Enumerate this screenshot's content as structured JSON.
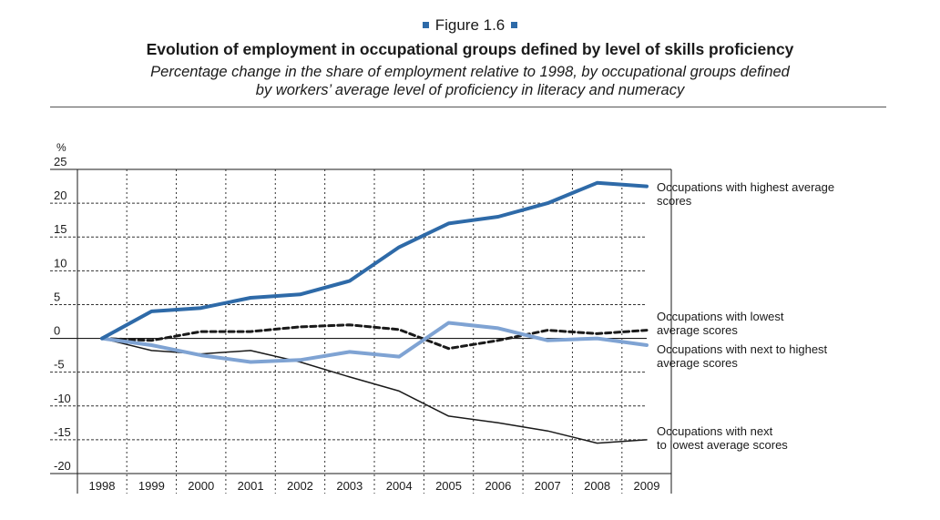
{
  "figure_label": "Figure 1.6",
  "title": "Evolution of employment in occupational groups defined by level of skills proficiency",
  "subtitle_line1": "Percentage change in the share of employment relative to 1998, by occupational groups defined",
  "subtitle_line2": "by workers’ average level of proficiency in literacy and numeracy",
  "colors": {
    "accent": "#2e6aa8"
  },
  "chart_data": {
    "type": "line",
    "title": "Evolution of employment in occupational groups defined by level of skills proficiency",
    "ylabel": "%",
    "xlabel": "",
    "ylim": [
      -20,
      25
    ],
    "yticks": [
      25,
      20,
      15,
      10,
      5,
      0,
      -5,
      -10,
      -15,
      -20
    ],
    "x": [
      "1998",
      "1999",
      "2000",
      "2001",
      "2002",
      "2003",
      "2004",
      "2005",
      "2006",
      "2007",
      "2008",
      "2009"
    ],
    "grid": true,
    "legend": "right",
    "series": [
      {
        "name": "Occupations with highest average scores",
        "label_lines": [
          "Occupations with highest average",
          "scores"
        ],
        "color": "#2e6aa8",
        "style": "solid-thick",
        "values": [
          0,
          4.0,
          4.5,
          6.0,
          6.5,
          8.5,
          13.5,
          17.0,
          18.0,
          20.0,
          23.0,
          22.5
        ]
      },
      {
        "name": "Occupations with lowest average scores",
        "label_lines": [
          "Occupations with lowest",
          "average scores"
        ],
        "color": "#1a1a1a",
        "style": "dashed",
        "values": [
          0,
          -0.3,
          1.0,
          1.0,
          1.7,
          2.0,
          1.3,
          -1.5,
          -0.3,
          1.2,
          0.7,
          1.2
        ]
      },
      {
        "name": "Occupations with next to highest average scores",
        "label_lines": [
          "Occupations with next to highest",
          "average scores"
        ],
        "color": "#7fa3d3",
        "style": "solid-thick",
        "values": [
          0,
          -1.0,
          -2.5,
          -3.5,
          -3.2,
          -2.0,
          -2.7,
          2.3,
          1.5,
          -0.3,
          0.0,
          -1.0
        ]
      },
      {
        "name": "Occupations with next to lowest average scores",
        "label_lines": [
          "Occupations with next",
          "to lowest average scores"
        ],
        "color": "#1a1a1a",
        "style": "solid-thin",
        "values": [
          0,
          -1.8,
          -2.3,
          -1.8,
          -3.5,
          -5.7,
          -7.8,
          -11.5,
          -12.5,
          -13.7,
          -15.5,
          -15.0
        ]
      }
    ]
  }
}
